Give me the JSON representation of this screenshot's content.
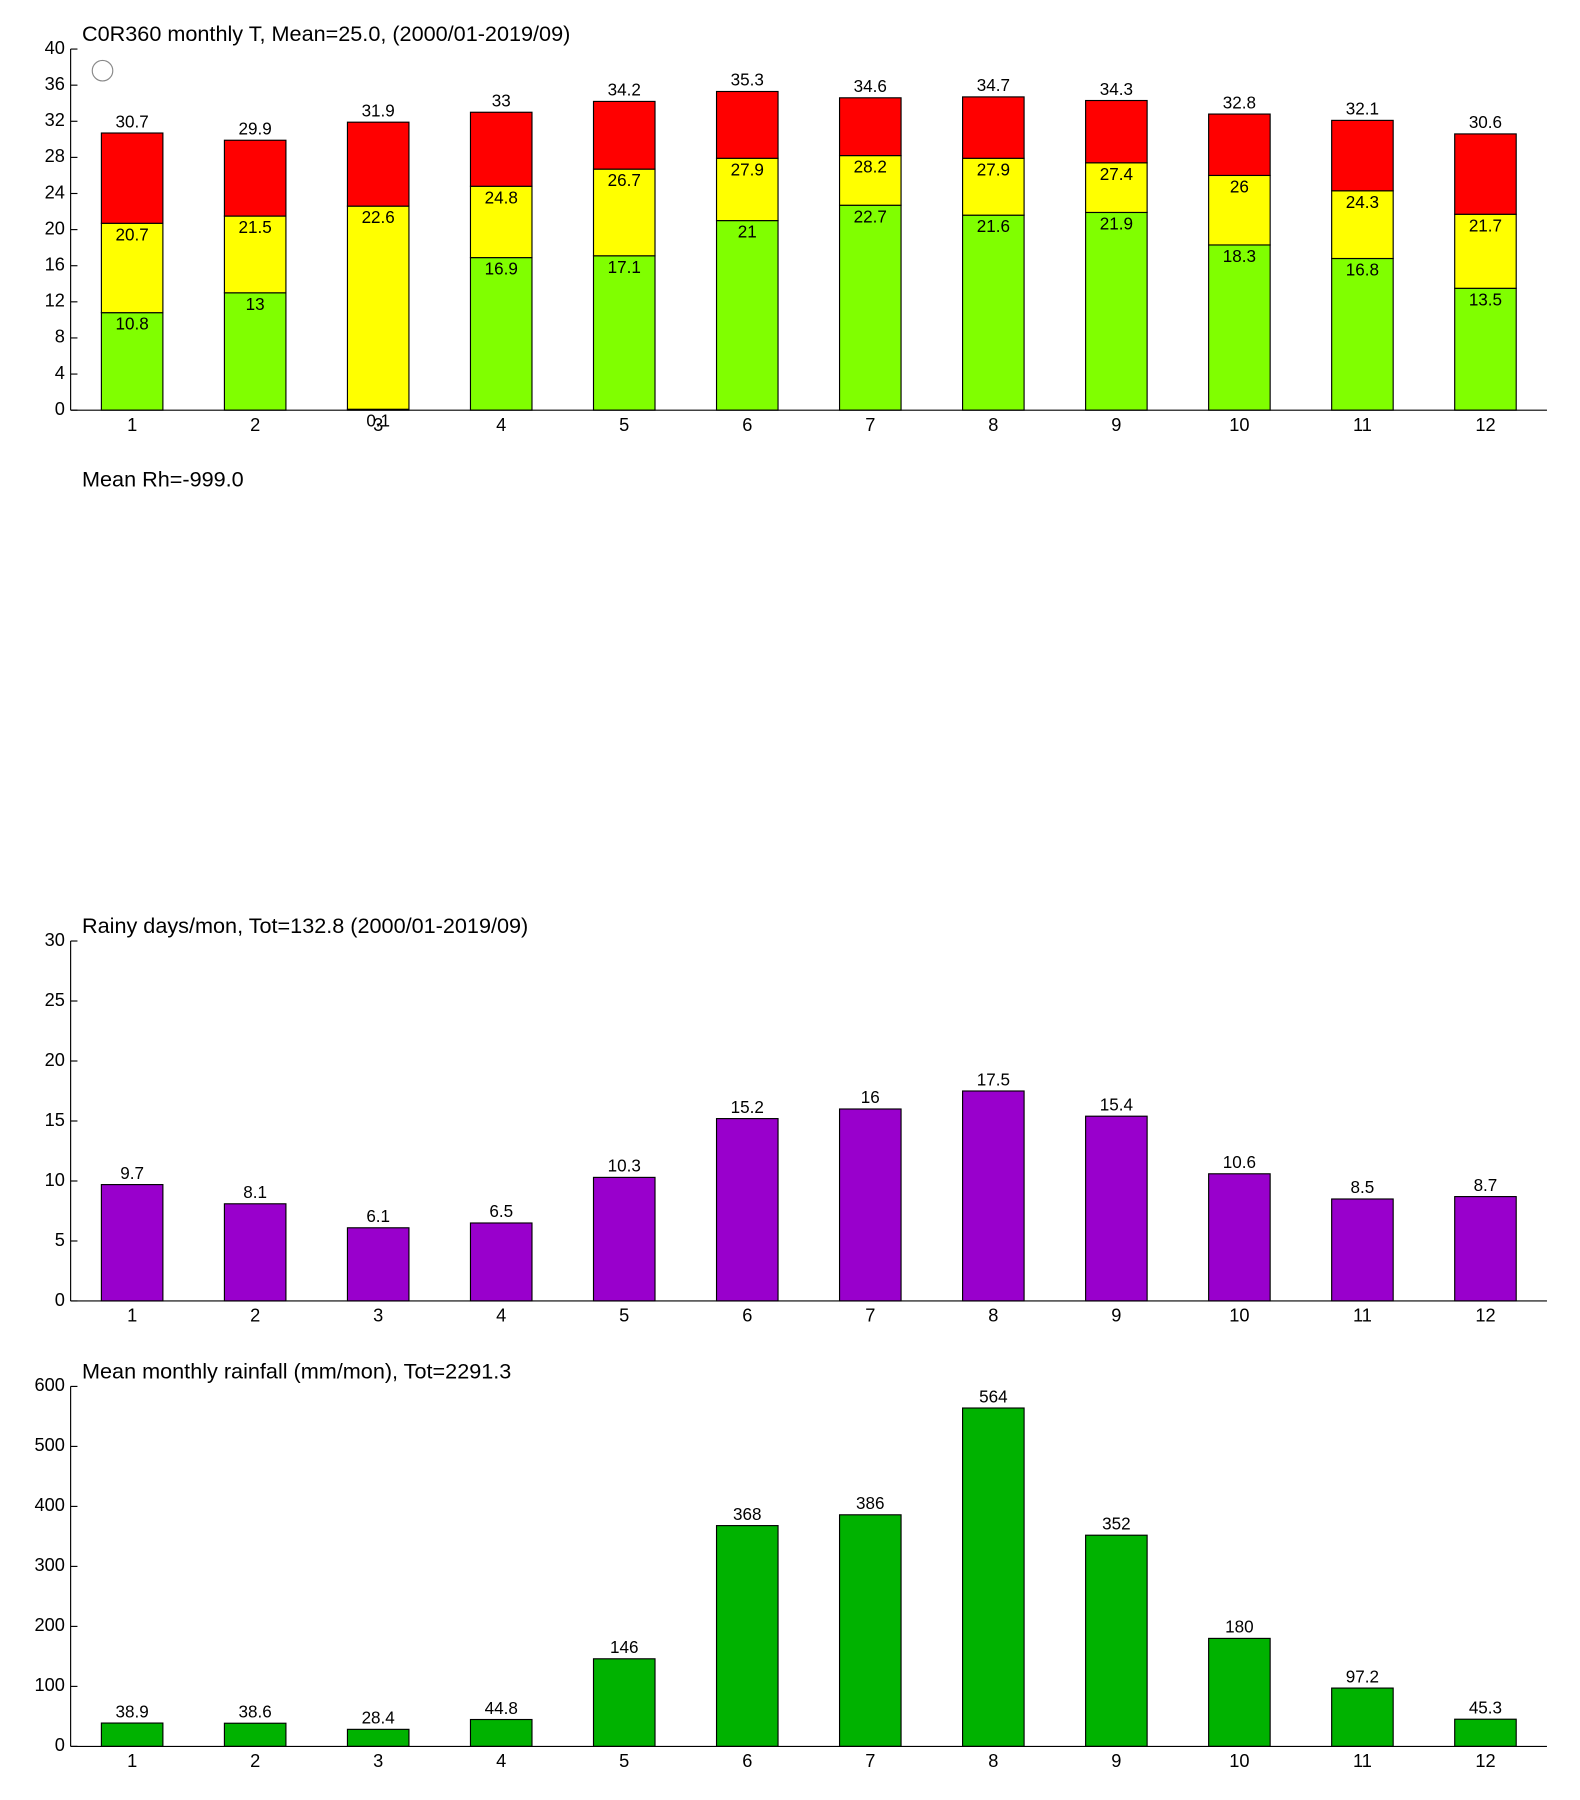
{
  "chart_data": [
    {
      "type": "range-bar",
      "title": "C0R360 monthly T, Mean=25.0, (2000/01-2019/09)",
      "categories": [
        "1",
        "2",
        "3",
        "4",
        "5",
        "6",
        "7",
        "8",
        "9",
        "10",
        "11",
        "12"
      ],
      "series": [
        {
          "color": "#80ff00",
          "values": [
            10.8,
            13,
            0.1,
            16.9,
            17.1,
            21,
            22.7,
            21.6,
            21.9,
            18.3,
            16.8,
            13.5
          ]
        },
        {
          "color": "#ffff00",
          "values": [
            20.7,
            21.5,
            22.6,
            24.8,
            26.7,
            27.9,
            28.2,
            27.9,
            27.4,
            26,
            24.3,
            21.7
          ]
        },
        {
          "color": "#ff0000",
          "values": [
            30.7,
            29.9,
            31.9,
            33,
            34.2,
            35.3,
            34.6,
            34.7,
            34.3,
            32.8,
            32.1,
            30.6
          ]
        }
      ],
      "ylim": [
        0,
        40
      ],
      "yticks": [
        0,
        4,
        8,
        12,
        16,
        20,
        24,
        28,
        32,
        36,
        40
      ]
    },
    {
      "type": "bar",
      "title": "Rainy days/mon, Tot=132.8 (2000/01-2019/09)",
      "categories": [
        "1",
        "2",
        "3",
        "4",
        "5",
        "6",
        "7",
        "8",
        "9",
        "10",
        "11",
        "12"
      ],
      "values": [
        9.7,
        8.1,
        6.1,
        6.5,
        10.3,
        15.2,
        16,
        17.5,
        15.4,
        10.6,
        8.5,
        8.7
      ],
      "color": "#9900cc",
      "ylim": [
        0,
        30
      ],
      "yticks": [
        0,
        5,
        10,
        15,
        20,
        25,
        30
      ]
    },
    {
      "type": "bar",
      "title": "Mean monthly rainfall (mm/mon), Tot=2291.3",
      "categories": [
        "1",
        "2",
        "3",
        "4",
        "5",
        "6",
        "7",
        "8",
        "9",
        "10",
        "11",
        "12"
      ],
      "values": [
        38.9,
        38.6,
        28.4,
        44.8,
        146,
        368,
        386,
        564,
        352,
        180,
        97.2,
        45.3
      ],
      "color": "#00b200",
      "ylim": [
        0,
        600
      ],
      "yticks": [
        0,
        100,
        200,
        300,
        400,
        500,
        600
      ]
    }
  ],
  "rh_title": "Mean Rh=-999.0"
}
